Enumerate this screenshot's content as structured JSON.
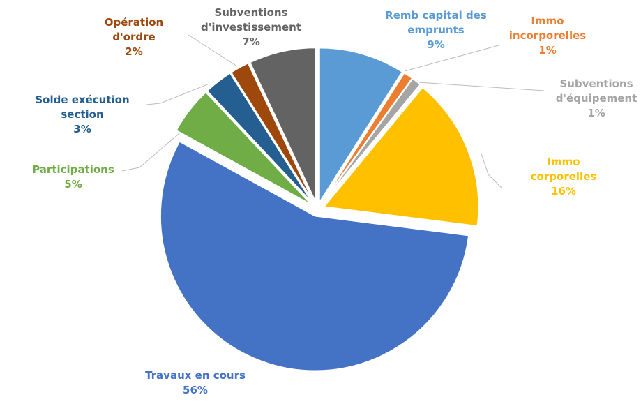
{
  "chart_data": {
    "type": "pie",
    "categories": [
      "Remb capital des emprunts",
      "Immo incorporelles",
      "Subventions d'équipement",
      "Immo corporelles",
      "Travaux en cours",
      "Participations",
      "Solde exécution section",
      "Opération d'ordre",
      "Subventions d'investissement"
    ],
    "values": [
      9,
      1,
      1,
      16,
      56,
      5,
      3,
      2,
      7
    ],
    "value_labels": [
      "9%",
      "1%",
      "1%",
      "16%",
      "56%",
      "5%",
      "3%",
      "2%",
      "7%"
    ],
    "colors": [
      "#5b9bd5",
      "#ed7d31",
      "#a5a5a5",
      "#ffc000",
      "#4472c4",
      "#70ad47",
      "#255e91",
      "#9e480e",
      "#636363"
    ]
  }
}
